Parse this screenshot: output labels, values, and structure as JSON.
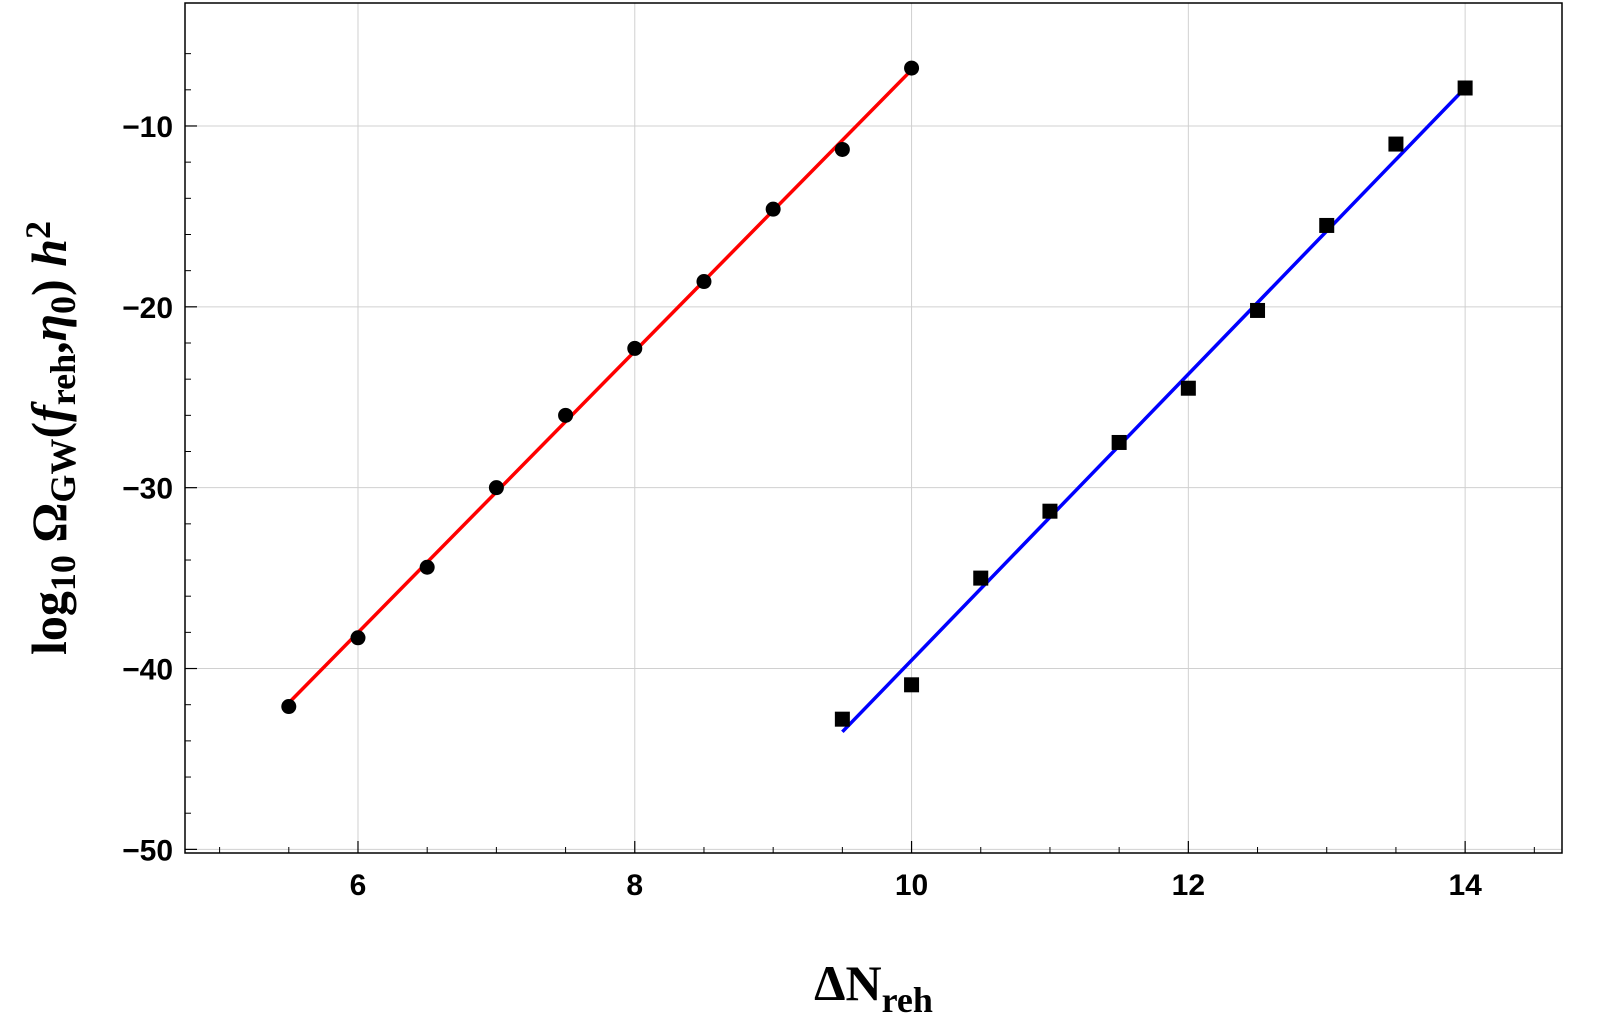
{
  "chart_data": {
    "type": "scatter",
    "title": "",
    "xlabel": {
      "main": "ΔN",
      "sub": "reh"
    },
    "ylabel": {
      "parts": [
        {
          "text": "log",
          "style": "normal"
        },
        {
          "text": "10",
          "style": "sub"
        },
        {
          "text": " Ω",
          "style": "normal"
        },
        {
          "text": "GW",
          "style": "sub"
        },
        {
          "text": "(",
          "style": "normal"
        },
        {
          "text": "f",
          "style": "italic"
        },
        {
          "text": "reh",
          "style": "sub"
        },
        {
          "text": ",",
          "style": "normal"
        },
        {
          "text": "η",
          "style": "italic"
        },
        {
          "text": "0",
          "style": "sub"
        },
        {
          "text": ") ",
          "style": "normal"
        },
        {
          "text": "h",
          "style": "italic"
        },
        {
          "text": "2",
          "style": "sup"
        }
      ]
    },
    "xlim": [
      4.75,
      14.7
    ],
    "ylim": [
      -50.2,
      -3.2
    ],
    "xticks": [
      6,
      8,
      10,
      12,
      14
    ],
    "xtick_labels": [
      "6",
      "8",
      "10",
      "12",
      "14"
    ],
    "yticks": [
      -10,
      -20,
      -30,
      -40,
      -50
    ],
    "ytick_labels": [
      "−10",
      "−20",
      "−30",
      "−40",
      "−50"
    ],
    "grid": true,
    "series": [
      {
        "marker": "circle",
        "color": "#000000",
        "points": [
          [
            5.5,
            -42.1
          ],
          [
            6.0,
            -38.3
          ],
          [
            6.5,
            -34.4
          ],
          [
            7.0,
            -30.0
          ],
          [
            7.5,
            -26.0
          ],
          [
            8.0,
            -22.3
          ],
          [
            8.5,
            -18.6
          ],
          [
            9.0,
            -14.6
          ],
          [
            9.5,
            -11.3
          ],
          [
            10.0,
            -6.8
          ]
        ]
      },
      {
        "marker": "square",
        "color": "#000000",
        "points": [
          [
            9.5,
            -42.8
          ],
          [
            10.0,
            -40.9
          ],
          [
            10.5,
            -35.0
          ],
          [
            11.0,
            -31.3
          ],
          [
            11.5,
            -27.5
          ],
          [
            12.0,
            -24.5
          ],
          [
            12.5,
            -20.2
          ],
          [
            13.0,
            -15.5
          ],
          [
            13.5,
            -11.0
          ],
          [
            14.0,
            -7.9
          ]
        ]
      }
    ],
    "fit_lines": [
      {
        "color": "#ff0000",
        "from": [
          5.5,
          -41.9
        ],
        "to": [
          10.0,
          -6.9
        ]
      },
      {
        "color": "#0000ff",
        "from": [
          9.5,
          -43.5
        ],
        "to": [
          14.0,
          -7.9
        ]
      }
    ]
  }
}
